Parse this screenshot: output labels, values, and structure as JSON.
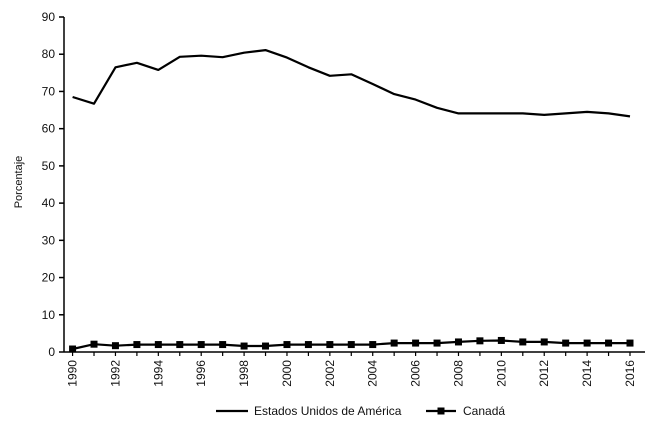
{
  "chart_data": {
    "type": "line",
    "ylabel": "Porcentaje",
    "xlabel": "",
    "ylim": [
      0,
      90
    ],
    "yticks": [
      0,
      10,
      20,
      30,
      40,
      50,
      60,
      70,
      80,
      90
    ],
    "x": [
      1990,
      1991,
      1992,
      1993,
      1994,
      1995,
      1996,
      1997,
      1998,
      1999,
      2000,
      2001,
      2002,
      2003,
      2004,
      2005,
      2006,
      2007,
      2008,
      2009,
      2010,
      2011,
      2012,
      2013,
      2014,
      2015,
      2016
    ],
    "xtick_labels": [
      "1990",
      "1992",
      "1994",
      "1996",
      "1998",
      "2000",
      "2002",
      "2004",
      "2006",
      "2008",
      "2010",
      "2012",
      "2014",
      "2016"
    ],
    "series": [
      {
        "name": "Estados Unidos de América",
        "color": "#000000",
        "marker": "none",
        "values": [
          68.5,
          66.7,
          76.5,
          77.7,
          75.8,
          79.3,
          79.6,
          79.2,
          80.4,
          81.1,
          79.1,
          76.5,
          74.2,
          74.6,
          72.0,
          69.3,
          67.8,
          65.6,
          64.1,
          64.1,
          64.1,
          64.1,
          63.7,
          64.1,
          64.5,
          64.1,
          63.3
        ]
      },
      {
        "name": "Canadá",
        "color": "#000000",
        "marker": "square",
        "values": [
          0.8,
          2.1,
          1.7,
          2.0,
          2.0,
          2.0,
          2.0,
          2.0,
          1.6,
          1.6,
          2.0,
          2.0,
          2.0,
          2.0,
          2.0,
          2.4,
          2.4,
          2.4,
          2.7,
          3.0,
          3.1,
          2.7,
          2.7,
          2.4,
          2.4,
          2.4,
          2.4
        ]
      }
    ],
    "legend": {
      "position": "bottom",
      "entries": [
        "Estados Unidos de América",
        "Canadá"
      ]
    },
    "grid": false
  }
}
